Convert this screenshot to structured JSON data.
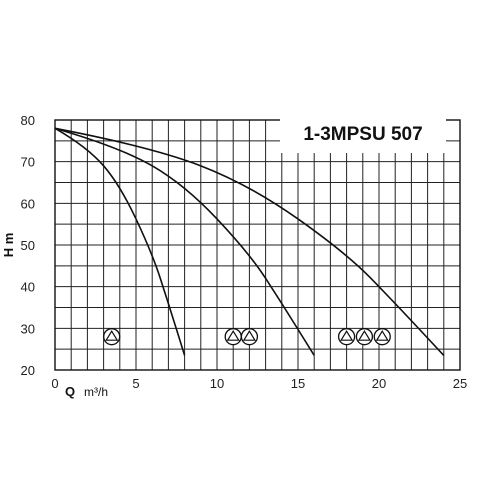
{
  "chart_data": {
    "type": "line",
    "title": "1-3MPSU 507",
    "xlabel": "Q",
    "xunit": "m³/h",
    "ylabel": "H m",
    "xlim": [
      0,
      25
    ],
    "ylim": [
      20,
      80
    ],
    "x_ticks": [
      "0",
      "5",
      "10",
      "15",
      "20",
      "25"
    ],
    "y_ticks": [
      "20",
      "30",
      "40",
      "50",
      "60",
      "70",
      "80"
    ],
    "grid": true,
    "series": [
      {
        "pumps": 1,
        "x": [
          0,
          2,
          4,
          6,
          7,
          8
        ],
        "y": [
          78,
          73.5,
          64.5,
          48,
          36,
          23.5
        ]
      },
      {
        "pumps": 2,
        "x": [
          0,
          4,
          8,
          12,
          14,
          16
        ],
        "y": [
          78,
          73.5,
          64.5,
          48,
          36,
          23.5
        ]
      },
      {
        "pumps": 3,
        "x": [
          0,
          6,
          12,
          18,
          21,
          24
        ],
        "y": [
          78,
          73.5,
          64.5,
          48,
          36,
          23.5
        ]
      }
    ],
    "pump_markers": [
      {
        "count": 1,
        "x": [
          3.5
        ],
        "y": 28
      },
      {
        "count": 2,
        "x": [
          11,
          12
        ],
        "y": 28
      },
      {
        "count": 3,
        "x": [
          18,
          19.1,
          20.2
        ],
        "y": 28
      }
    ]
  }
}
